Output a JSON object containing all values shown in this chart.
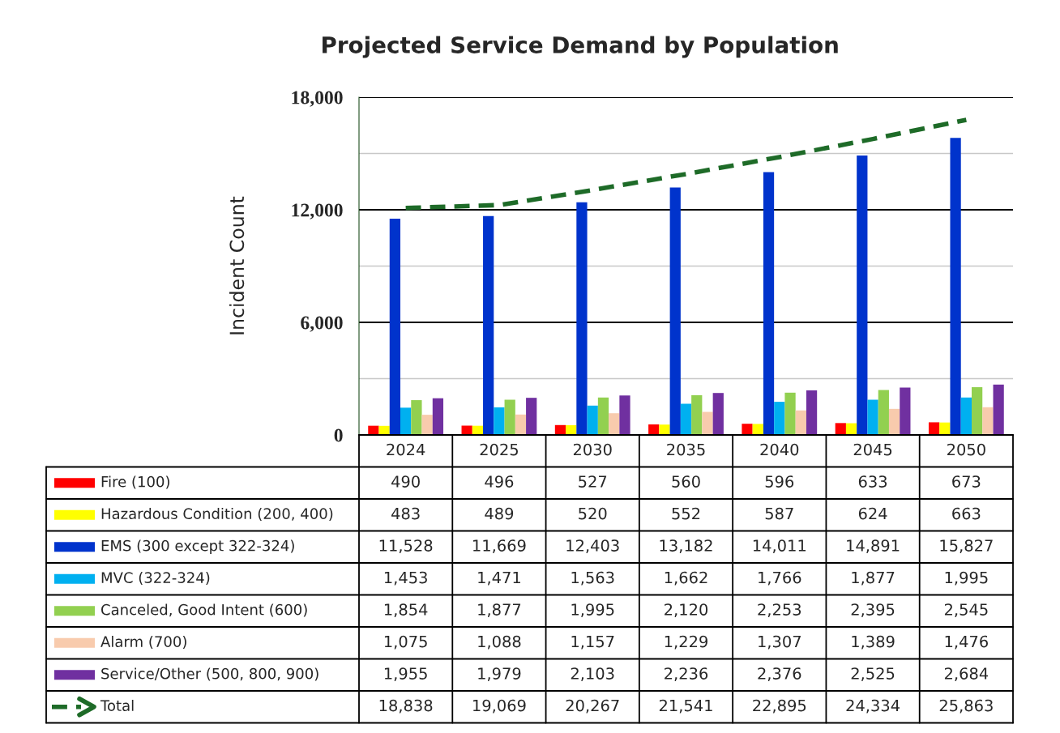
{
  "chart_data": {
    "type": "bar",
    "title": "Projected Service Demand by Population",
    "ylabel": "Incident Count",
    "categories": [
      "2024",
      "2025",
      "2030",
      "2035",
      "2040",
      "2045",
      "2050"
    ],
    "ylim": [
      0,
      18000
    ],
    "yticks": [
      0,
      {
        "value": 3000,
        "label": null
      },
      {
        "value": 6000,
        "label": "6,000"
      },
      {
        "value": 9000,
        "label": null
      },
      {
        "value": 12000,
        "label": "12,000"
      },
      {
        "value": 15000,
        "label": null
      },
      {
        "value": 18000,
        "label": "18,000"
      }
    ],
    "grid": "y",
    "legend": "bottom",
    "series": [
      {
        "name": "Fire (100)",
        "color": "#ff0000",
        "values": [
          490,
          496,
          527,
          560,
          596,
          633,
          673
        ],
        "value_labels": [
          "490",
          "496",
          "527",
          "560",
          "596",
          "633",
          "673"
        ]
      },
      {
        "name": "Hazardous Condition (200, 400)",
        "color": "#ffff00",
        "values": [
          483,
          489,
          520,
          552,
          587,
          624,
          663
        ],
        "value_labels": [
          "483",
          "489",
          "520",
          "552",
          "587",
          "624",
          "663"
        ]
      },
      {
        "name": "EMS (300 except 322-324)",
        "color": "#0033cc",
        "values": [
          11528,
          11669,
          12403,
          13182,
          14011,
          14891,
          15827
        ],
        "value_labels": [
          "11,528",
          "11,669",
          "12,403",
          "13,182",
          "14,011",
          "14,891",
          "15,827"
        ]
      },
      {
        "name": "MVC (322-324)",
        "color": "#00b0f0",
        "values": [
          1453,
          1471,
          1563,
          1662,
          1766,
          1877,
          1995
        ],
        "value_labels": [
          "1,453",
          "1,471",
          "1,563",
          "1,662",
          "1,766",
          "1,877",
          "1,995"
        ]
      },
      {
        "name": "Canceled, Good Intent (600)",
        "color": "#92d050",
        "values": [
          1854,
          1877,
          1995,
          2120,
          2253,
          2395,
          2545
        ],
        "value_labels": [
          "1,854",
          "1,877",
          "1,995",
          "2,120",
          "2,253",
          "2,395",
          "2,545"
        ]
      },
      {
        "name": "Alarm (700)",
        "color": "#f8cbad",
        "values": [
          1075,
          1088,
          1157,
          1229,
          1307,
          1389,
          1476
        ],
        "value_labels": [
          "1,075",
          "1,088",
          "1,157",
          "1,229",
          "1,307",
          "1,389",
          "1,476"
        ]
      },
      {
        "name": "Service/Other (500, 800, 900)",
        "color": "#7030a0",
        "values": [
          1955,
          1979,
          2103,
          2236,
          2376,
          2525,
          2684
        ],
        "value_labels": [
          "1,955",
          "1,979",
          "2,103",
          "2,236",
          "2,376",
          "2,525",
          "2,684"
        ]
      },
      {
        "name": "Total",
        "color": "#1e6b28",
        "type": "line",
        "axis": "y2",
        "line_style": "dashed",
        "values": [
          18838,
          19069,
          20267,
          21541,
          22895,
          24334,
          25863
        ],
        "value_labels": [
          "18,838",
          "19,069",
          "20,267",
          "21,541",
          "22,895",
          "24,334",
          "25,863"
        ]
      }
    ],
    "y2lim": [
      750,
      27666
    ]
  }
}
